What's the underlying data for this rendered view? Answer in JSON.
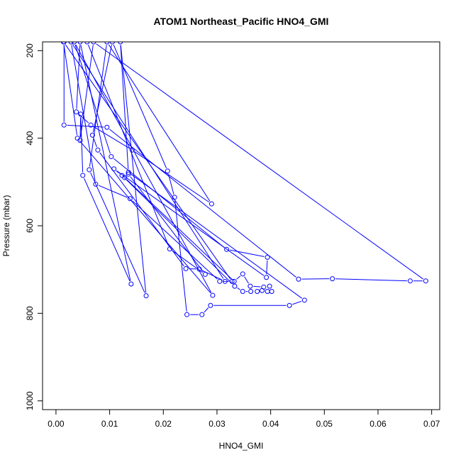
{
  "chart_data": {
    "type": "scatter",
    "title": "ATOM1 Northeast_Pacific HNO4_GMI",
    "xlabel": "HNO4_GMI",
    "ylabel": "Pressure (mbar)",
    "xlim": [
      -0.0025,
      0.0715
    ],
    "ylim": [
      1020,
      180
    ],
    "y_reversed": true,
    "x_ticks": [
      0.0,
      0.01,
      0.02,
      0.03,
      0.04,
      0.05,
      0.06,
      0.07
    ],
    "x_tick_labels": [
      "0.00",
      "0.01",
      "0.02",
      "0.03",
      "0.04",
      "0.05",
      "0.06",
      "0.07"
    ],
    "y_ticks": [
      200,
      400,
      600,
      800,
      1000
    ],
    "y_tick_labels": [
      "200",
      "400",
      "600",
      "800",
      "1000"
    ],
    "grid": false,
    "legend": "none",
    "series_color": "#0000ff",
    "series": [
      {
        "points": [
          {
            "x": 0.0015,
            "y": 180
          },
          {
            "x": 0.0015,
            "y": 370
          },
          {
            "x": 0.0095,
            "y": 375
          },
          {
            "x": 0.0452,
            "y": 722
          },
          {
            "x": 0.0515,
            "y": 721
          },
          {
            "x": 0.066,
            "y": 726
          },
          {
            "x": 0.0689,
            "y": 726
          },
          {
            "x": 0.007,
            "y": 180
          },
          {
            "x": 0.0045,
            "y": 405
          },
          {
            "x": 0.0046,
            "y": 345
          },
          {
            "x": 0.005,
            "y": 485
          },
          {
            "x": 0.014,
            "y": 733
          },
          {
            "x": 0.0045,
            "y": 180
          },
          {
            "x": 0.0038,
            "y": 340
          },
          {
            "x": 0.0065,
            "y": 370
          },
          {
            "x": 0.0142,
            "y": 427
          },
          {
            "x": 0.029,
            "y": 550
          },
          {
            "x": 0.0095,
            "y": 180
          },
          {
            "x": 0.0062,
            "y": 472
          },
          {
            "x": 0.0168,
            "y": 760
          },
          {
            "x": 0.012,
            "y": 180
          },
          {
            "x": 0.0135,
            "y": 478
          },
          {
            "x": 0.0463,
            "y": 770
          },
          {
            "x": 0.0435,
            "y": 782
          },
          {
            "x": 0.0288,
            "y": 782
          },
          {
            "x": 0.0272,
            "y": 803
          },
          {
            "x": 0.0244,
            "y": 803
          },
          {
            "x": 0.0221,
            "y": 535
          },
          {
            "x": 0.0208,
            "y": 475
          },
          {
            "x": 0.0105,
            "y": 180
          },
          {
            "x": 0.0068,
            "y": 393
          },
          {
            "x": 0.0078,
            "y": 427
          },
          {
            "x": 0.0242,
            "y": 698
          },
          {
            "x": 0.0267,
            "y": 699
          },
          {
            "x": 0.0315,
            "y": 727
          },
          {
            "x": 0.0028,
            "y": 180
          },
          {
            "x": 0.0074,
            "y": 505
          },
          {
            "x": 0.0138,
            "y": 538
          },
          {
            "x": 0.0305,
            "y": 727
          },
          {
            "x": 0.0328,
            "y": 727
          },
          {
            "x": 0.0014,
            "y": 180
          },
          {
            "x": 0.004,
            "y": 400
          },
          {
            "x": 0.0292,
            "y": 759
          },
          {
            "x": 0.0034,
            "y": 180
          },
          {
            "x": 0.0103,
            "y": 442
          },
          {
            "x": 0.0318,
            "y": 654
          },
          {
            "x": 0.0394,
            "y": 672
          },
          {
            "x": 0.0392,
            "y": 718
          },
          {
            "x": 0.0108,
            "y": 470
          },
          {
            "x": 0.0123,
            "y": 485
          },
          {
            "x": 0.0333,
            "y": 738
          },
          {
            "x": 0.0348,
            "y": 750
          },
          {
            "x": 0.0363,
            "y": 750
          },
          {
            "x": 0.0375,
            "y": 750
          },
          {
            "x": 0.0384,
            "y": 748
          },
          {
            "x": 0.0394,
            "y": 750
          },
          {
            "x": 0.0402,
            "y": 750
          },
          {
            "x": 0.0398,
            "y": 738
          },
          {
            "x": 0.0387,
            "y": 740
          },
          {
            "x": 0.0362,
            "y": 738
          },
          {
            "x": 0.0348,
            "y": 710
          },
          {
            "x": 0.0332,
            "y": 727
          },
          {
            "x": 0.0128,
            "y": 490
          },
          {
            "x": 0.0135,
            "y": 482
          },
          {
            "x": 0.0278,
            "y": 711
          },
          {
            "x": 0.0212,
            "y": 653
          },
          {
            "x": 0.0058,
            "y": 180
          }
        ]
      }
    ]
  }
}
